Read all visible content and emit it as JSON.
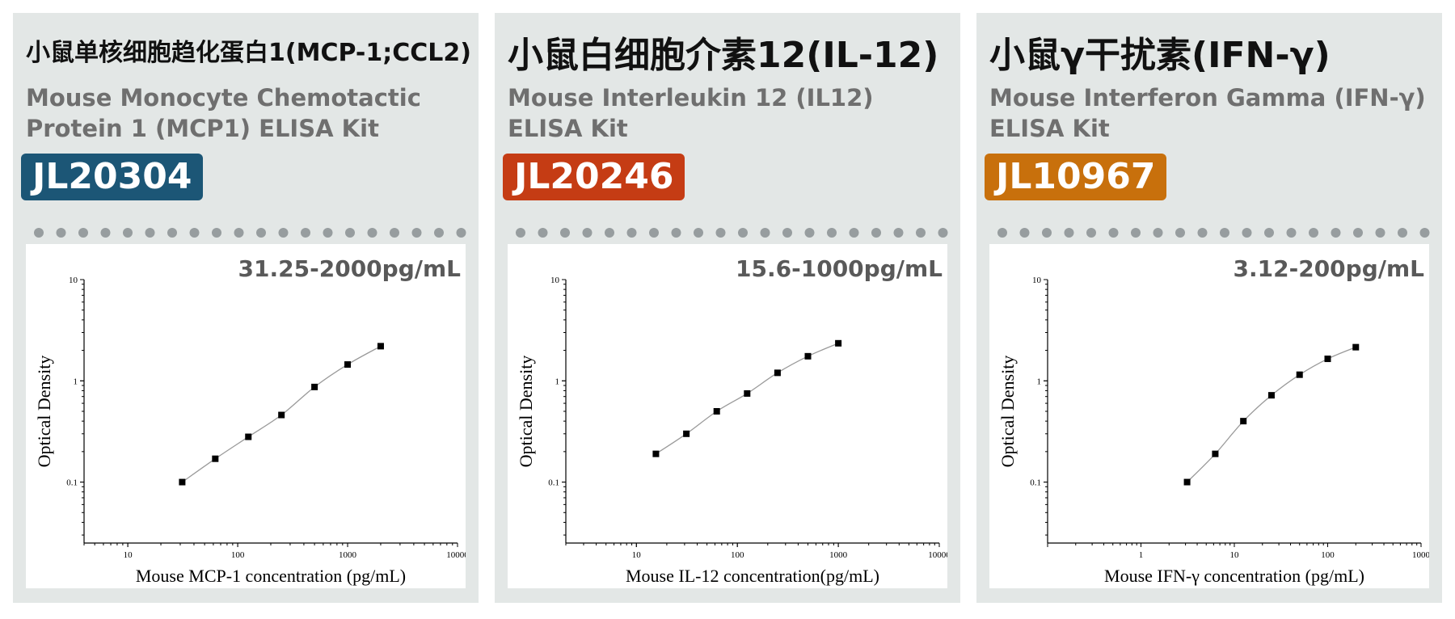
{
  "cards": [
    {
      "title_cn": "小鼠单核细胞趋化蛋白1(MCP-1;CCL2)",
      "title_en_1": "Mouse Monocyte Chemotactic",
      "title_en_2": "Protein 1 (MCP1) ELISA Kit",
      "catalog": "JL20304",
      "range": "31.25-2000pg/mL"
    },
    {
      "title_cn": "小鼠白细胞介素12(IL-12)",
      "title_en_1": "Mouse Interleukin 12 (IL12)",
      "title_en_2": "ELISA Kit",
      "catalog": "JL20246",
      "range": "15.6-1000pg/mL"
    },
    {
      "title_cn": "小鼠γ干扰素(IFN-γ)",
      "title_en_1": "Mouse Interferon Gamma (IFN-γ)",
      "title_en_2": "ELISA Kit",
      "catalog": "JL10967",
      "range": "3.12-200pg/mL"
    }
  ],
  "colors": {
    "card_background": "#e3e7e6",
    "dots": "#979d9f",
    "badges": [
      "#1c5676",
      "#c53c14",
      "#c8700c"
    ]
  },
  "chart_data": [
    {
      "type": "scatter",
      "title": "",
      "xlabel": "Mouse MCP-1 concentration (pg/mL)",
      "ylabel": "Optical Density",
      "x_scale": "log",
      "y_scale": "log",
      "xlim": [
        4,
        10000
      ],
      "ylim": [
        0.025,
        10
      ],
      "x_ticks": [
        10,
        100,
        1000,
        10000
      ],
      "y_ticks": [
        0.1,
        1,
        10
      ],
      "grid": false,
      "legend": "none",
      "x": [
        31.25,
        62.5,
        125,
        250,
        500,
        1000,
        2000
      ],
      "y": [
        0.1,
        0.17,
        0.28,
        0.46,
        0.87,
        1.45,
        2.2
      ]
    },
    {
      "type": "scatter",
      "title": "",
      "xlabel": "Mouse IL-12 concentration(pg/mL)",
      "ylabel": "Optical Density",
      "x_scale": "log",
      "y_scale": "log",
      "xlim": [
        2,
        10000
      ],
      "ylim": [
        0.025,
        10
      ],
      "x_ticks": [
        10,
        100,
        1000,
        10000
      ],
      "y_ticks": [
        0.1,
        1,
        10
      ],
      "grid": false,
      "legend": "none",
      "x": [
        15.6,
        31.25,
        62.5,
        125,
        250,
        500,
        1000
      ],
      "y": [
        0.19,
        0.3,
        0.5,
        0.75,
        1.2,
        1.75,
        2.35
      ]
    },
    {
      "type": "scatter",
      "title": "",
      "xlabel": "Mouse IFN-γ concentration (pg/mL)",
      "ylabel": "Optical Density",
      "x_scale": "log",
      "y_scale": "log",
      "xlim": [
        0.1,
        1000
      ],
      "ylim": [
        0.025,
        10
      ],
      "x_ticks": [
        1,
        10,
        100,
        1000
      ],
      "y_ticks": [
        0.1,
        1,
        10
      ],
      "grid": false,
      "legend": "none",
      "x": [
        3.12,
        6.25,
        12.5,
        25,
        50,
        100,
        200
      ],
      "y": [
        0.1,
        0.19,
        0.4,
        0.72,
        1.15,
        1.65,
        2.15
      ]
    }
  ]
}
